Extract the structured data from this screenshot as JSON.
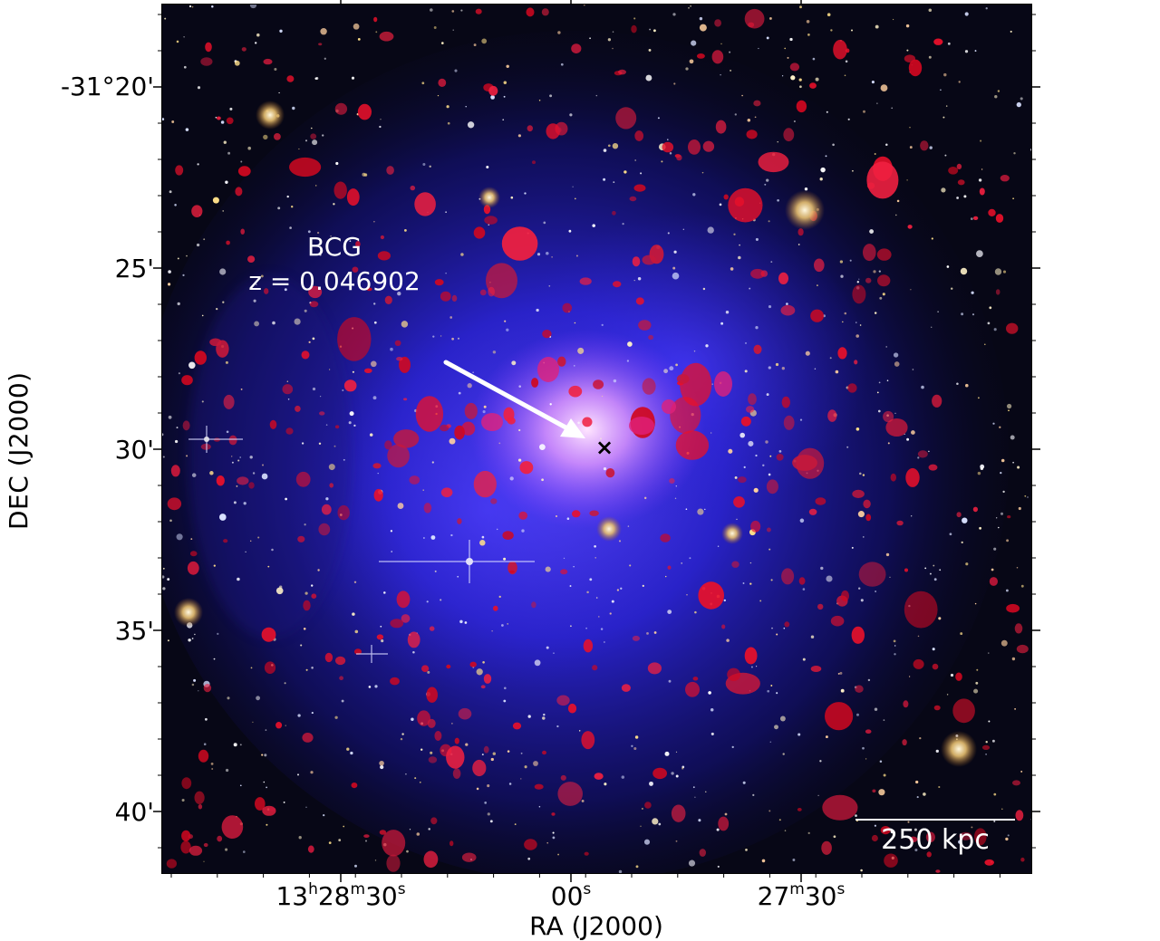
{
  "figure": {
    "ylabel": "DEC (J2000)",
    "xlabel": "RA (J2000)",
    "yticks": [
      "-31°20'",
      "25'",
      "30'",
      "35'",
      "40'"
    ],
    "xticks": [
      {
        "main": "13",
        "h": "h",
        "min": "28",
        "m": "m",
        "sec": "30",
        "s": "s"
      },
      {
        "main": "",
        "h": "",
        "min": "",
        "m": "",
        "sec": "00",
        "s": "s"
      },
      {
        "main": "",
        "h": "",
        "min": "27",
        "m": "m",
        "sec": "30",
        "s": "s"
      }
    ],
    "annotation": {
      "line1": "BCG",
      "line2": "z = 0.046902"
    },
    "marker": "×",
    "scalebar": "250 kpc"
  },
  "colors": {
    "background": "#070716",
    "xray": "#3a2cff",
    "core": "#f0c8ff",
    "radio": "#e8102a"
  }
}
